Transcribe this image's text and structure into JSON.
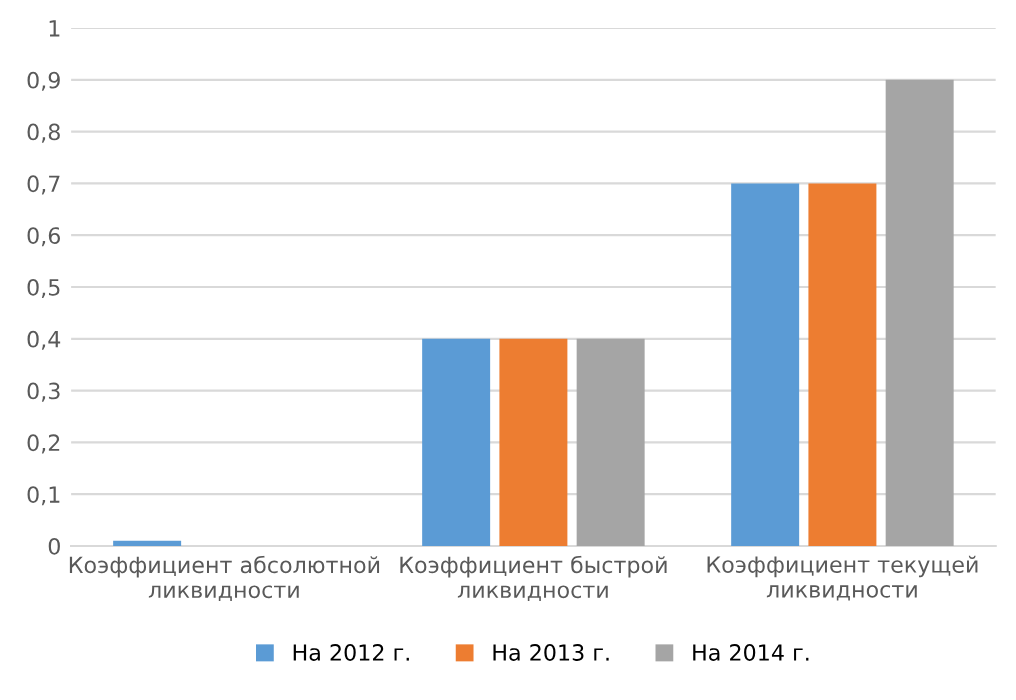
{
  "chart_data": {
    "type": "bar",
    "categories": [
      "Коэффициент абсолютной\nликвидности",
      "Коэффициент быстрой\nликвидности",
      "Коэффициент текущей\nликвидности"
    ],
    "series": [
      {
        "name": "На 2012 г.",
        "color": "#5b9bd5",
        "values": [
          0.01,
          0.4,
          0.7
        ]
      },
      {
        "name": "На 2013 г.",
        "color": "#ed7d31",
        "values": [
          0,
          0.4,
          0.7
        ]
      },
      {
        "name": "На 2014 г.",
        "color": "#a5a5a5",
        "values": [
          0,
          0.4,
          0.9
        ]
      }
    ],
    "ylim": [
      0,
      1
    ],
    "yticks": [
      0,
      {
        "value": 0.1,
        "label": "0,1"
      },
      {
        "value": 0.2,
        "label": "0,2"
      },
      {
        "value": 0.3,
        "label": "0,3"
      },
      {
        "value": 0.4,
        "label": "0,4"
      },
      {
        "value": 0.5,
        "label": "0,5"
      },
      {
        "value": 0.6,
        "label": "0,6"
      },
      {
        "value": 0.7,
        "label": "0,7"
      },
      {
        "value": 0.8,
        "label": "0,8"
      },
      {
        "value": 0.9,
        "label": "0,9"
      },
      1
    ],
    "grid": "y",
    "legend": "bottom"
  }
}
